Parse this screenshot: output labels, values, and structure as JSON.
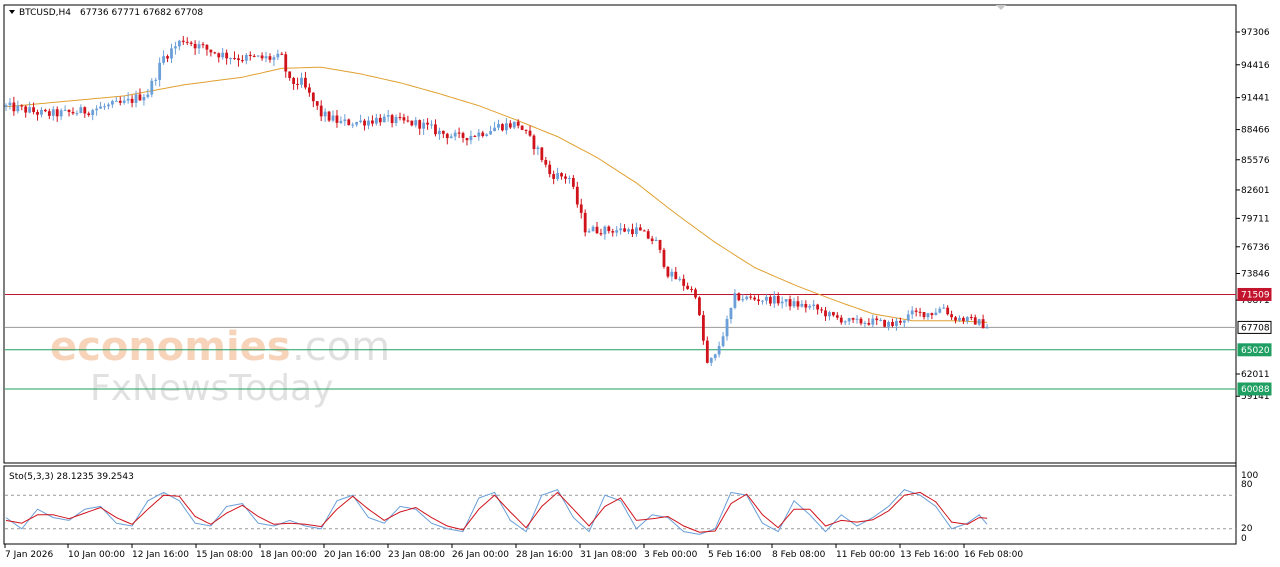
{
  "header": {
    "symbol": "BTCUSD,H4",
    "ohlc": "67736 67771 67682 67708"
  },
  "watermark": {
    "brand_a": "economies",
    "brand_b": ".com",
    "brand_c": "FxNewsToday"
  },
  "indicator": {
    "label": "Sto(5,3,3) 28.1235 39.2543",
    "levels": [
      "100",
      "80",
      "20",
      "0"
    ]
  },
  "colors": {
    "bull": "#6a9fd8",
    "bear": "#d0121b",
    "ma": "#e0a030",
    "resistance": "#c3142d",
    "support": "#1f9f62",
    "current": "#9a9a9a"
  },
  "price_tags": {
    "resistance": "71509",
    "current": "67708",
    "support1": "65020",
    "support2": "60088"
  },
  "chart_data": {
    "type": "candlestick",
    "y_ticks": [
      97306,
      94416,
      91441,
      88466,
      85576,
      82601,
      79711,
      76736,
      73846,
      70871,
      62011,
      59141
    ],
    "y_tick_labels": [
      "97306",
      "94416",
      "91441",
      "88466",
      "85576",
      "82601",
      "79711",
      "76736",
      "73846",
      "70871",
      "62011",
      "59141"
    ],
    "x_tick_labels": [
      "7 Jan 2026",
      "10 Jan 00:00",
      "12 Jan 16:00",
      "15 Jan 08:00",
      "18 Jan 00:00",
      "20 Jan 16:00",
      "23 Jan 08:00",
      "26 Jan 00:00",
      "28 Jan 16:00",
      "31 Jan 08:00",
      "3 Feb 00:00",
      "5 Feb 16:00",
      "8 Feb 08:00",
      "11 Feb 00:00",
      "13 Feb 16:00",
      "16 Feb 08:00"
    ],
    "horizontal_levels": [
      71509,
      67708,
      65020,
      60088
    ],
    "anchors": [
      [
        0,
        90600
      ],
      [
        5,
        90300
      ],
      [
        10,
        89900
      ],
      [
        15,
        90000
      ],
      [
        20,
        90200
      ],
      [
        25,
        90600
      ],
      [
        30,
        90900
      ],
      [
        36,
        91900
      ],
      [
        40,
        95100
      ],
      [
        45,
        96700
      ],
      [
        50,
        95900
      ],
      [
        55,
        95300
      ],
      [
        60,
        95000
      ],
      [
        65,
        95000
      ],
      [
        70,
        95000
      ],
      [
        72,
        92800
      ],
      [
        75,
        92800
      ],
      [
        80,
        89900
      ],
      [
        85,
        89100
      ],
      [
        90,
        89200
      ],
      [
        95,
        89500
      ],
      [
        100,
        89200
      ],
      [
        105,
        89000
      ],
      [
        110,
        88200
      ],
      [
        115,
        87700
      ],
      [
        120,
        88100
      ],
      [
        125,
        88800
      ],
      [
        130,
        89000
      ],
      [
        135,
        86500
      ],
      [
        138,
        84200
      ],
      [
        143,
        83800
      ],
      [
        147,
        78600
      ],
      [
        150,
        78500
      ],
      [
        155,
        78500
      ],
      [
        160,
        78500
      ],
      [
        165,
        77200
      ],
      [
        168,
        73900
      ],
      [
        171,
        73000
      ],
      [
        175,
        71600
      ],
      [
        178,
        63300
      ],
      [
        180,
        64200
      ],
      [
        182,
        66900
      ],
      [
        185,
        71200
      ],
      [
        190,
        71000
      ],
      [
        195,
        70900
      ],
      [
        200,
        70400
      ],
      [
        205,
        70000
      ],
      [
        210,
        68900
      ],
      [
        215,
        68300
      ],
      [
        220,
        68400
      ],
      [
        225,
        68000
      ],
      [
        230,
        69300
      ],
      [
        235,
        69400
      ],
      [
        238,
        70100
      ],
      [
        240,
        68900
      ],
      [
        245,
        68500
      ],
      [
        247,
        68300
      ],
      [
        249,
        67708
      ]
    ],
    "ma_anchors": [
      [
        0,
        90600
      ],
      [
        15,
        91100
      ],
      [
        30,
        91600
      ],
      [
        45,
        92600
      ],
      [
        60,
        93300
      ],
      [
        70,
        94100
      ],
      [
        80,
        94200
      ],
      [
        90,
        93600
      ],
      [
        100,
        92800
      ],
      [
        110,
        91800
      ],
      [
        120,
        90700
      ],
      [
        130,
        89300
      ],
      [
        140,
        87800
      ],
      [
        150,
        85800
      ],
      [
        160,
        83300
      ],
      [
        170,
        80200
      ],
      [
        180,
        77200
      ],
      [
        190,
        74500
      ],
      [
        200,
        72600
      ],
      [
        210,
        70900
      ],
      [
        220,
        69300
      ],
      [
        230,
        68500
      ],
      [
        240,
        68500
      ],
      [
        249,
        68300
      ]
    ],
    "stochastic_last": {
      "k": 28.1235,
      "d": 39.2543
    },
    "stochastic_k_anchors": [
      [
        0,
        40
      ],
      [
        4,
        20
      ],
      [
        8,
        55
      ],
      [
        12,
        40
      ],
      [
        16,
        35
      ],
      [
        20,
        55
      ],
      [
        24,
        60
      ],
      [
        28,
        30
      ],
      [
        32,
        25
      ],
      [
        36,
        70
      ],
      [
        40,
        85
      ],
      [
        44,
        70
      ],
      [
        48,
        30
      ],
      [
        52,
        25
      ],
      [
        56,
        60
      ],
      [
        60,
        65
      ],
      [
        64,
        30
      ],
      [
        68,
        25
      ],
      [
        72,
        35
      ],
      [
        76,
        25
      ],
      [
        80,
        20
      ],
      [
        84,
        70
      ],
      [
        88,
        80
      ],
      [
        92,
        40
      ],
      [
        96,
        30
      ],
      [
        100,
        60
      ],
      [
        104,
        55
      ],
      [
        108,
        30
      ],
      [
        112,
        20
      ],
      [
        116,
        15
      ],
      [
        120,
        75
      ],
      [
        124,
        85
      ],
      [
        128,
        35
      ],
      [
        132,
        15
      ],
      [
        136,
        80
      ],
      [
        140,
        90
      ],
      [
        144,
        40
      ],
      [
        148,
        15
      ],
      [
        152,
        80
      ],
      [
        156,
        70
      ],
      [
        160,
        20
      ],
      [
        164,
        45
      ],
      [
        168,
        40
      ],
      [
        172,
        15
      ],
      [
        176,
        10
      ],
      [
        180,
        20
      ],
      [
        184,
        85
      ],
      [
        188,
        80
      ],
      [
        192,
        30
      ],
      [
        196,
        15
      ],
      [
        200,
        70
      ],
      [
        204,
        45
      ],
      [
        208,
        15
      ],
      [
        212,
        45
      ],
      [
        216,
        25
      ],
      [
        220,
        40
      ],
      [
        224,
        60
      ],
      [
        228,
        90
      ],
      [
        232,
        80
      ],
      [
        236,
        60
      ],
      [
        240,
        20
      ],
      [
        244,
        30
      ],
      [
        247,
        45
      ],
      [
        249,
        28
      ]
    ],
    "stochastic_d_anchors": [
      [
        0,
        35
      ],
      [
        4,
        30
      ],
      [
        8,
        45
      ],
      [
        12,
        45
      ],
      [
        16,
        38
      ],
      [
        20,
        48
      ],
      [
        24,
        58
      ],
      [
        28,
        40
      ],
      [
        32,
        28
      ],
      [
        36,
        55
      ],
      [
        40,
        80
      ],
      [
        44,
        78
      ],
      [
        48,
        42
      ],
      [
        52,
        28
      ],
      [
        56,
        48
      ],
      [
        60,
        62
      ],
      [
        64,
        42
      ],
      [
        68,
        28
      ],
      [
        72,
        30
      ],
      [
        76,
        28
      ],
      [
        80,
        24
      ],
      [
        84,
        55
      ],
      [
        88,
        78
      ],
      [
        92,
        55
      ],
      [
        96,
        35
      ],
      [
        100,
        50
      ],
      [
        104,
        58
      ],
      [
        108,
        40
      ],
      [
        112,
        25
      ],
      [
        116,
        18
      ],
      [
        120,
        55
      ],
      [
        124,
        80
      ],
      [
        128,
        50
      ],
      [
        132,
        22
      ],
      [
        136,
        60
      ],
      [
        140,
        85
      ],
      [
        144,
        55
      ],
      [
        148,
        25
      ],
      [
        152,
        60
      ],
      [
        156,
        75
      ],
      [
        160,
        35
      ],
      [
        164,
        38
      ],
      [
        168,
        42
      ],
      [
        172,
        25
      ],
      [
        176,
        14
      ],
      [
        180,
        16
      ],
      [
        184,
        65
      ],
      [
        188,
        82
      ],
      [
        192,
        45
      ],
      [
        196,
        22
      ],
      [
        200,
        55
      ],
      [
        204,
        55
      ],
      [
        208,
        25
      ],
      [
        212,
        35
      ],
      [
        216,
        32
      ],
      [
        220,
        36
      ],
      [
        224,
        52
      ],
      [
        228,
        80
      ],
      [
        232,
        85
      ],
      [
        236,
        68
      ],
      [
        240,
        32
      ],
      [
        244,
        28
      ],
      [
        247,
        40
      ],
      [
        249,
        39
      ]
    ]
  }
}
